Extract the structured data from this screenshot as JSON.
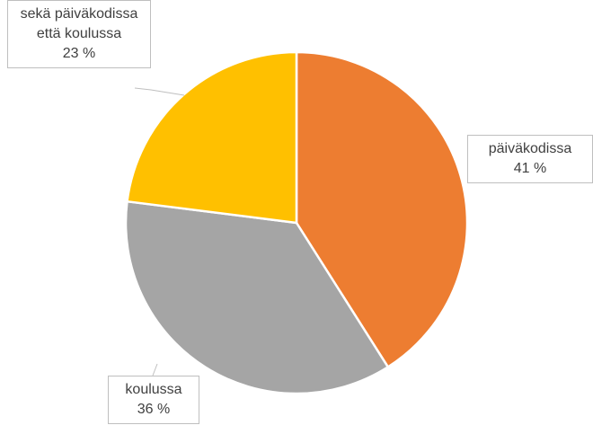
{
  "chart_data": {
    "type": "pie",
    "categories": [
      "päiväkodissa",
      "koulussa",
      "sekä päiväkodissa että koulussa"
    ],
    "values": [
      41,
      36,
      23
    ],
    "value_labels": [
      "41 %",
      "36 %",
      "23 %"
    ],
    "colors": [
      "#ed7d31",
      "#a5a5a5",
      "#ffc000"
    ]
  }
}
